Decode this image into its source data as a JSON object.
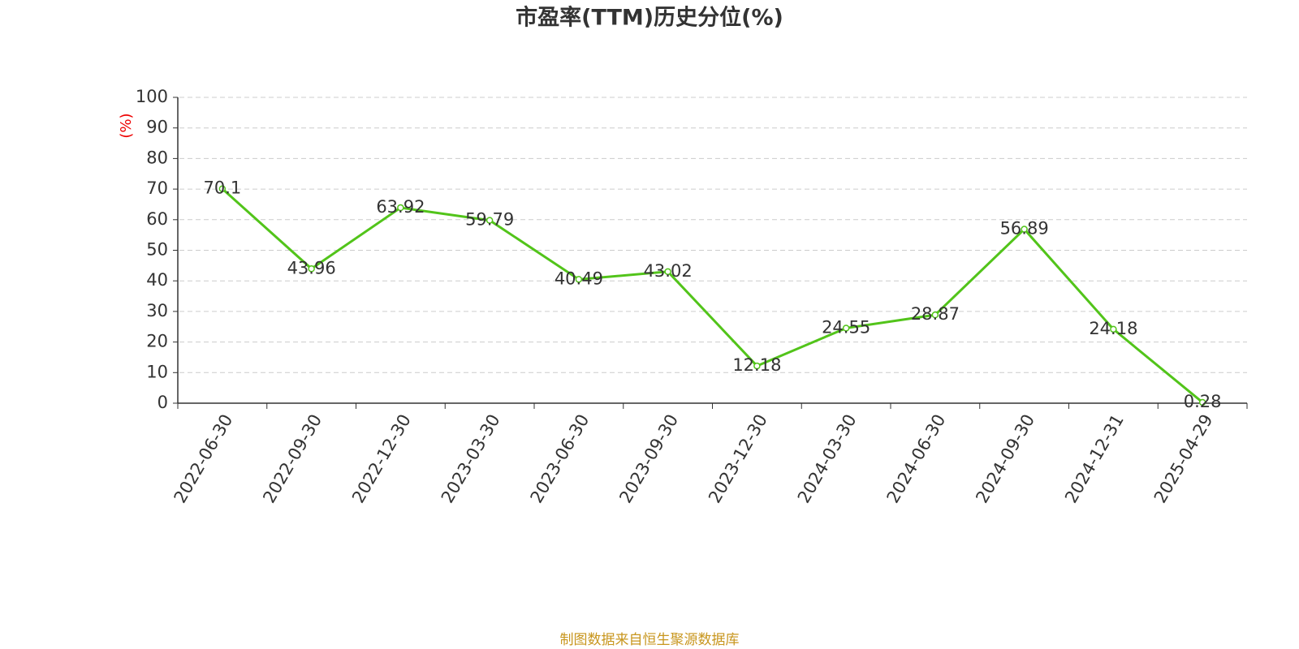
{
  "chart_data": {
    "type": "line",
    "title": "市盈率(TTM)历史分位(%)",
    "y_label": "(%)",
    "categories": [
      "2022-06-30",
      "2022-09-30",
      "2022-12-30",
      "2023-03-30",
      "2023-06-30",
      "2023-09-30",
      "2023-12-30",
      "2024-03-30",
      "2024-06-30",
      "2024-09-30",
      "2024-12-31",
      "2025-04-29"
    ],
    "series": [
      {
        "name": "市盈率(TTM)历史分位",
        "color": "#52c41a",
        "values": [
          70.1,
          43.96,
          63.92,
          59.79,
          40.49,
          43.02,
          12.18,
          24.55,
          28.87,
          56.89,
          24.18,
          0.28
        ]
      }
    ],
    "ylim": [
      0,
      100
    ],
    "yticks": [
      0,
      10,
      20,
      30,
      40,
      50,
      60,
      70,
      80,
      90,
      100
    ],
    "grid": true,
    "source": "制图数据来自恒生聚源数据库"
  }
}
